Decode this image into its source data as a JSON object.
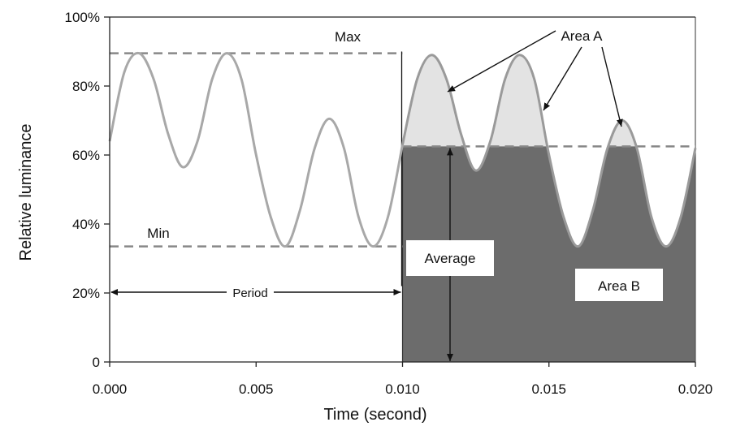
{
  "chart_data": {
    "type": "line",
    "xlabel": "Time (second)",
    "ylabel": "Relative luminance",
    "xlim": [
      0,
      0.02
    ],
    "ylim": [
      0,
      100
    ],
    "x_ticks": [
      "0.000",
      "0.005",
      "0.010",
      "0.015",
      "0.020"
    ],
    "y_ticks": [
      "0",
      "20%",
      "40%",
      "60%",
      "80%",
      "100%"
    ],
    "grid": false,
    "series": [
      {
        "type": "line",
        "color": "#a8a8a8",
        "x": [
          0,
          0.0005,
          0.001,
          0.0015,
          0.002,
          0.0025,
          0.003,
          0.0035,
          0.004,
          0.0045,
          0.005,
          0.0055,
          0.006,
          0.0065,
          0.007,
          0.0075,
          0.008,
          0.0085,
          0.009,
          0.0095,
          0.01
        ],
        "y": [
          64,
          84,
          89.5,
          82,
          66,
          56.5,
          64,
          82,
          89.5,
          82,
          60,
          42,
          33.5,
          44,
          62,
          70.5,
          62,
          42,
          33.5,
          42,
          63
        ]
      },
      {
        "type": "area",
        "color": "#6c6c6c",
        "x": [
          0.01,
          0.0105,
          0.011,
          0.0115,
          0.012,
          0.0125,
          0.013,
          0.0135,
          0.014,
          0.0145,
          0.015,
          0.0155,
          0.016,
          0.0165,
          0.017,
          0.0175,
          0.018,
          0.0185,
          0.019,
          0.0195,
          0.02
        ],
        "y": [
          63,
          82,
          89,
          82,
          66,
          55.5,
          64,
          82,
          89,
          82,
          60,
          42,
          33.5,
          44,
          62,
          70,
          62,
          42,
          33.5,
          42,
          62
        ]
      }
    ],
    "reference_lines": {
      "max": 89.5,
      "min": 33.5,
      "average": 62.5
    },
    "annotations": {
      "max": "Max",
      "min": "Min",
      "period": "Period",
      "average": "Average",
      "area_a": "Area A",
      "area_b": "Area B"
    }
  }
}
